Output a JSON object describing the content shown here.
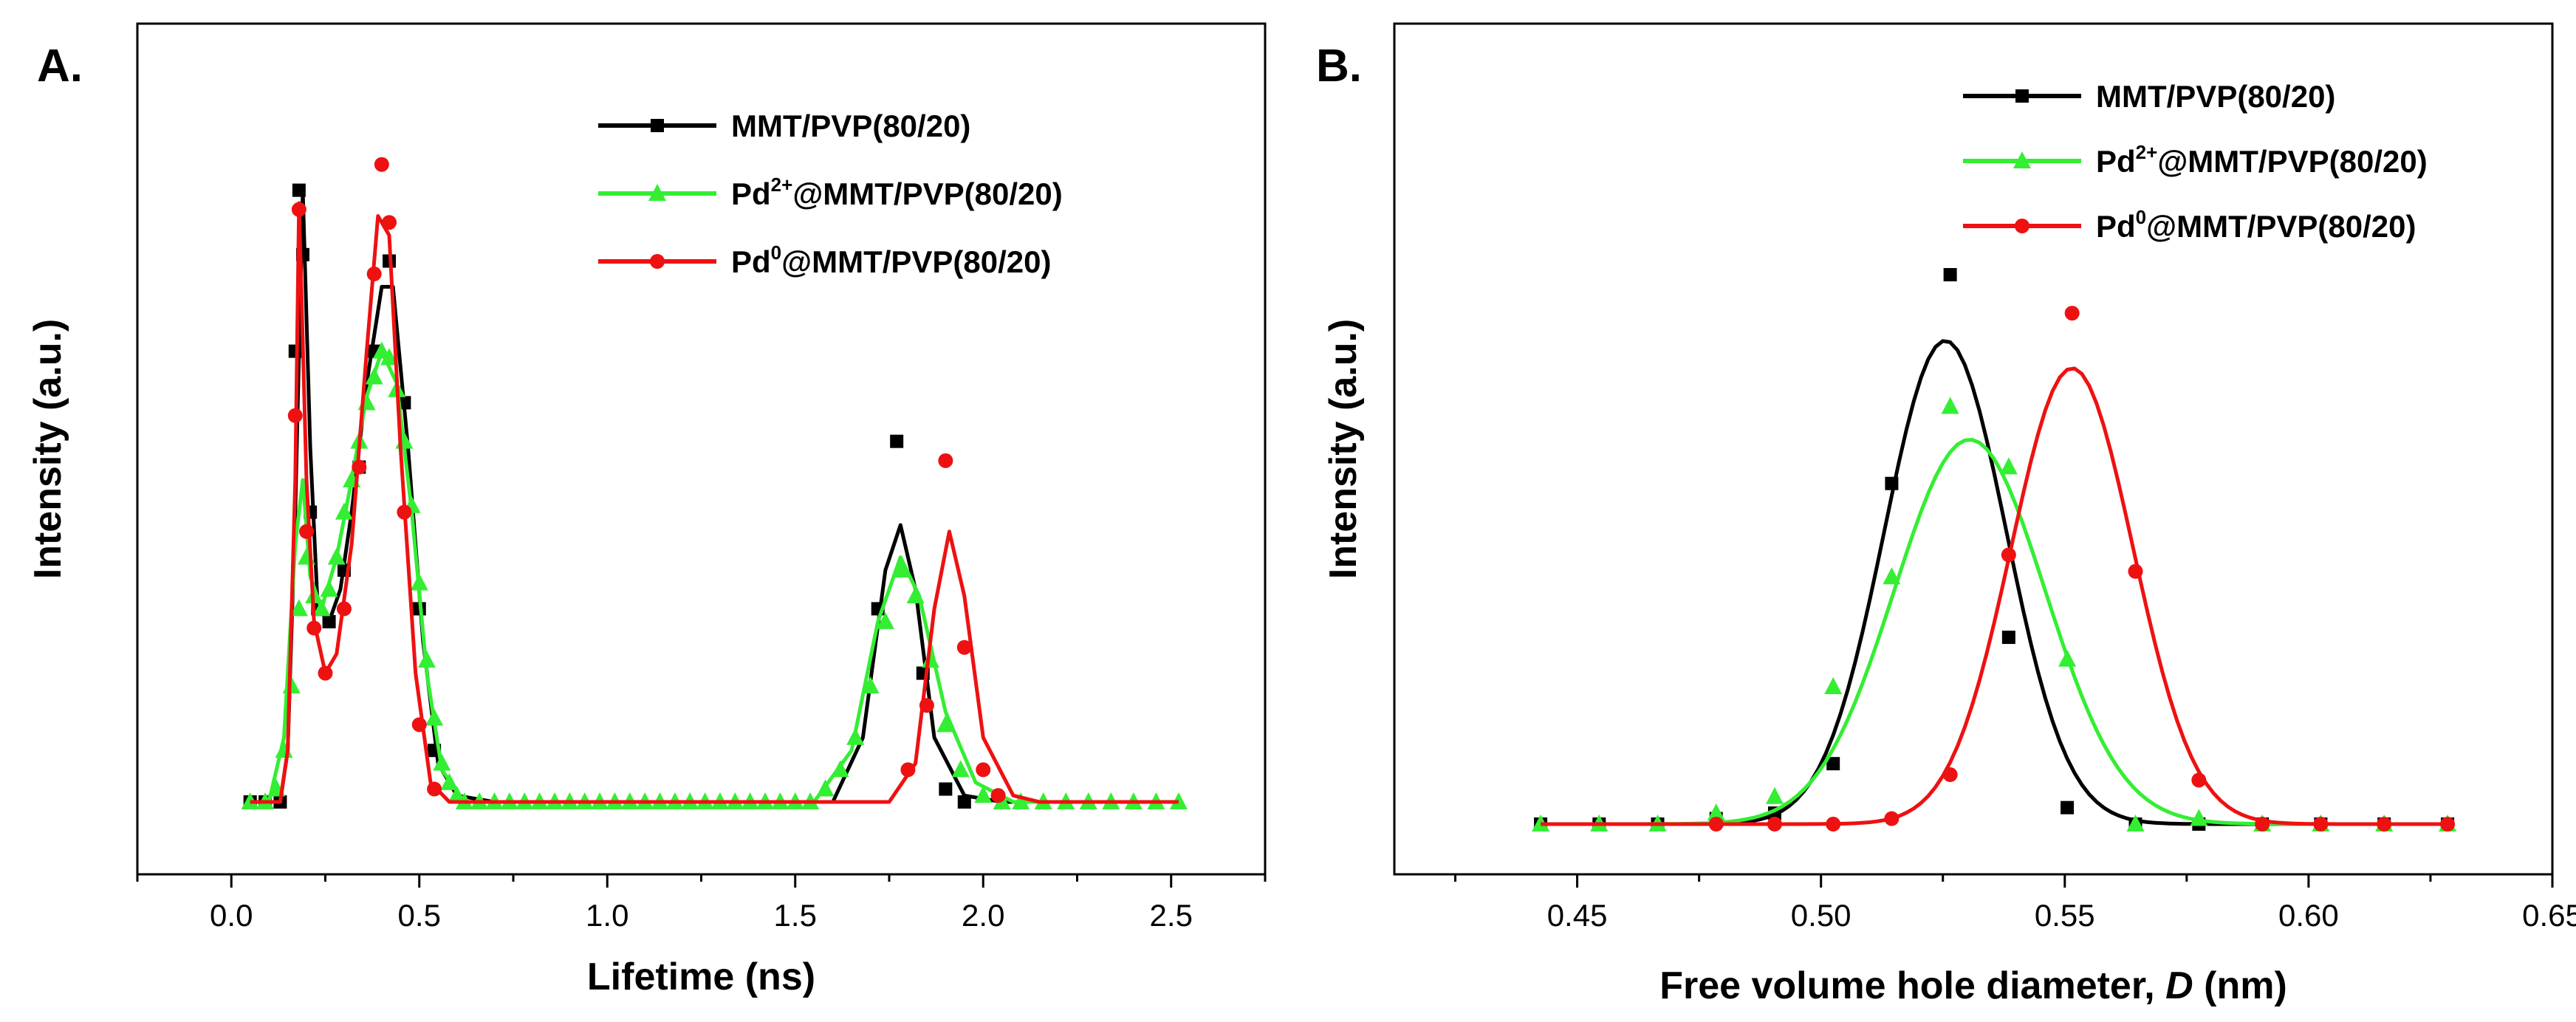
{
  "chart_data": [
    {
      "type": "line",
      "panel_label": "A.",
      "xlabel": "Lifetime (ns)",
      "ylabel": "Intensity (a.u.)",
      "xlim": [
        -0.25,
        2.75
      ],
      "xticks": [
        "0.0",
        "0.5",
        "1.0",
        "1.5",
        "2.0",
        "2.5"
      ],
      "y_ticks_shown": false,
      "legend_placement": "top-right",
      "series": [
        {
          "name": "MMT/PVP(80/20)",
          "name_sup": "",
          "name_rest": "",
          "color": "#000000",
          "marker": "square",
          "curve": [
            [
              0.05,
              0.0
            ],
            [
              0.13,
              0.0
            ],
            [
              0.15,
              0.08
            ],
            [
              0.17,
              0.45
            ],
            [
              0.19,
              0.95
            ],
            [
              0.21,
              0.55
            ],
            [
              0.23,
              0.3
            ],
            [
              0.26,
              0.28
            ],
            [
              0.29,
              0.33
            ],
            [
              0.32,
              0.45
            ],
            [
              0.36,
              0.65
            ],
            [
              0.4,
              0.8
            ],
            [
              0.43,
              0.8
            ],
            [
              0.47,
              0.55
            ],
            [
              0.51,
              0.25
            ],
            [
              0.55,
              0.06
            ],
            [
              0.6,
              0.01
            ],
            [
              0.7,
              0.0
            ],
            [
              1.6,
              0.0
            ],
            [
              1.68,
              0.1
            ],
            [
              1.74,
              0.36
            ],
            [
              1.78,
              0.43
            ],
            [
              1.82,
              0.33
            ],
            [
              1.87,
              0.1
            ],
            [
              1.95,
              0.01
            ],
            [
              2.05,
              0.0
            ],
            [
              2.52,
              0.0
            ]
          ],
          "points": [
            [
              0.05,
              0.0
            ],
            [
              0.09,
              0.0
            ],
            [
              0.13,
              0.0
            ],
            [
              0.17,
              0.7
            ],
            [
              0.18,
              0.95
            ],
            [
              0.19,
              0.85
            ],
            [
              0.21,
              0.45
            ],
            [
              0.23,
              0.3
            ],
            [
              0.26,
              0.28
            ],
            [
              0.3,
              0.36
            ],
            [
              0.34,
              0.52
            ],
            [
              0.38,
              0.7
            ],
            [
              0.42,
              0.84
            ],
            [
              0.46,
              0.62
            ],
            [
              0.5,
              0.3
            ],
            [
              0.54,
              0.08
            ],
            [
              1.72,
              0.3
            ],
            [
              1.77,
              0.56
            ],
            [
              1.84,
              0.2
            ],
            [
              1.9,
              0.02
            ],
            [
              1.95,
              0.0
            ]
          ]
        },
        {
          "name": "Pd",
          "name_sup": "2+",
          "name_rest": "@MMT/PVP(80/20)",
          "color": "#33ee33",
          "marker": "triangle",
          "curve": [
            [
              0.05,
              0.0
            ],
            [
              0.1,
              0.0
            ],
            [
              0.14,
              0.1
            ],
            [
              0.17,
              0.4
            ],
            [
              0.19,
              0.5
            ],
            [
              0.21,
              0.35
            ],
            [
              0.24,
              0.3
            ],
            [
              0.28,
              0.38
            ],
            [
              0.32,
              0.5
            ],
            [
              0.36,
              0.63
            ],
            [
              0.4,
              0.7
            ],
            [
              0.44,
              0.65
            ],
            [
              0.48,
              0.45
            ],
            [
              0.52,
              0.2
            ],
            [
              0.56,
              0.05
            ],
            [
              0.62,
              0.0
            ],
            [
              1.55,
              0.0
            ],
            [
              1.65,
              0.08
            ],
            [
              1.72,
              0.28
            ],
            [
              1.78,
              0.38
            ],
            [
              1.83,
              0.32
            ],
            [
              1.9,
              0.14
            ],
            [
              1.98,
              0.03
            ],
            [
              2.08,
              0.0
            ],
            [
              2.52,
              0.0
            ]
          ],
          "points": [
            [
              0.05,
              0.0
            ],
            [
              0.09,
              0.0
            ],
            [
              0.12,
              0.02
            ],
            [
              0.14,
              0.08
            ],
            [
              0.16,
              0.18
            ],
            [
              0.18,
              0.3
            ],
            [
              0.2,
              0.38
            ],
            [
              0.22,
              0.32
            ],
            [
              0.24,
              0.3
            ],
            [
              0.26,
              0.33
            ],
            [
              0.28,
              0.38
            ],
            [
              0.3,
              0.45
            ],
            [
              0.32,
              0.5
            ],
            [
              0.34,
              0.56
            ],
            [
              0.36,
              0.62
            ],
            [
              0.38,
              0.66
            ],
            [
              0.4,
              0.7
            ],
            [
              0.42,
              0.69
            ],
            [
              0.44,
              0.64
            ],
            [
              0.46,
              0.56
            ],
            [
              0.48,
              0.46
            ],
            [
              0.5,
              0.34
            ],
            [
              0.52,
              0.22
            ],
            [
              0.54,
              0.13
            ],
            [
              0.56,
              0.06
            ],
            [
              0.58,
              0.03
            ],
            [
              0.6,
              0.01
            ],
            [
              0.62,
              0.0
            ],
            [
              0.66,
              0.0
            ],
            [
              0.7,
              0.0
            ],
            [
              0.74,
              0.0
            ],
            [
              0.78,
              0.0
            ],
            [
              0.82,
              0.0
            ],
            [
              0.86,
              0.0
            ],
            [
              0.9,
              0.0
            ],
            [
              0.94,
              0.0
            ],
            [
              0.98,
              0.0
            ],
            [
              1.02,
              0.0
            ],
            [
              1.06,
              0.0
            ],
            [
              1.1,
              0.0
            ],
            [
              1.14,
              0.0
            ],
            [
              1.18,
              0.0
            ],
            [
              1.22,
              0.0
            ],
            [
              1.26,
              0.0
            ],
            [
              1.3,
              0.0
            ],
            [
              1.34,
              0.0
            ],
            [
              1.38,
              0.0
            ],
            [
              1.42,
              0.0
            ],
            [
              1.46,
              0.0
            ],
            [
              1.5,
              0.0
            ],
            [
              1.54,
              0.0
            ],
            [
              1.58,
              0.02
            ],
            [
              1.62,
              0.05
            ],
            [
              1.66,
              0.1
            ],
            [
              1.7,
              0.18
            ],
            [
              1.74,
              0.28
            ],
            [
              1.78,
              0.36
            ],
            [
              1.82,
              0.32
            ],
            [
              1.86,
              0.22
            ],
            [
              1.9,
              0.12
            ],
            [
              1.94,
              0.05
            ],
            [
              2.0,
              0.01
            ],
            [
              2.05,
              0.0
            ],
            [
              2.1,
              0.0
            ],
            [
              2.16,
              0.0
            ],
            [
              2.22,
              0.0
            ],
            [
              2.28,
              0.0
            ],
            [
              2.34,
              0.0
            ],
            [
              2.4,
              0.0
            ],
            [
              2.46,
              0.0
            ],
            [
              2.52,
              0.0
            ]
          ]
        },
        {
          "name": "Pd",
          "name_sup": "0",
          "name_rest": "@MMT/PVP(80/20)",
          "color": "#ee1111",
          "marker": "circle",
          "curve": [
            [
              0.05,
              0.0
            ],
            [
              0.13,
              0.0
            ],
            [
              0.15,
              0.08
            ],
            [
              0.17,
              0.5
            ],
            [
              0.18,
              0.93
            ],
            [
              0.2,
              0.5
            ],
            [
              0.22,
              0.28
            ],
            [
              0.25,
              0.2
            ],
            [
              0.28,
              0.23
            ],
            [
              0.32,
              0.4
            ],
            [
              0.36,
              0.7
            ],
            [
              0.39,
              0.91
            ],
            [
              0.42,
              0.88
            ],
            [
              0.45,
              0.55
            ],
            [
              0.49,
              0.2
            ],
            [
              0.53,
              0.03
            ],
            [
              0.58,
              0.0
            ],
            [
              1.75,
              0.0
            ],
            [
              1.82,
              0.06
            ],
            [
              1.87,
              0.3
            ],
            [
              1.91,
              0.42
            ],
            [
              1.95,
              0.32
            ],
            [
              2.0,
              0.1
            ],
            [
              2.08,
              0.01
            ],
            [
              2.15,
              0.0
            ],
            [
              2.52,
              0.0
            ]
          ],
          "points": [
            [
              0.17,
              0.6
            ],
            [
              0.18,
              0.92
            ],
            [
              0.2,
              0.42
            ],
            [
              0.22,
              0.27
            ],
            [
              0.25,
              0.2
            ],
            [
              0.3,
              0.3
            ],
            [
              0.34,
              0.52
            ],
            [
              0.38,
              0.82
            ],
            [
              0.4,
              0.99
            ],
            [
              0.42,
              0.9
            ],
            [
              0.46,
              0.45
            ],
            [
              0.5,
              0.12
            ],
            [
              0.54,
              0.02
            ],
            [
              1.8,
              0.05
            ],
            [
              1.85,
              0.15
            ],
            [
              1.9,
              0.53
            ],
            [
              1.95,
              0.24
            ],
            [
              2.0,
              0.05
            ],
            [
              2.04,
              0.01
            ]
          ]
        }
      ]
    },
    {
      "type": "line",
      "panel_label": "B.",
      "xlabel": "Free volume hole diameter, ",
      "xlabel_italic": "D",
      "xlabel_tail": " (nm)",
      "ylabel": "Intensity (a.u.)",
      "xlim": [
        0.4125,
        0.65
      ],
      "xticks": [
        "0.45",
        "0.50",
        "0.55",
        "0.60",
        "0.65"
      ],
      "y_ticks_shown": false,
      "legend_placement": "top-right",
      "series": [
        {
          "name": "MMT/PVP(80/20)",
          "name_sup": "",
          "name_rest": "",
          "color": "#000000",
          "marker": "square",
          "gaussian": {
            "center": 0.5255,
            "sigma": 0.0125,
            "amplitude": 0.88
          },
          "points": [
            [
              0.4425,
              0.0
            ],
            [
              0.4545,
              0.0
            ],
            [
              0.4665,
              0.0
            ],
            [
              0.4785,
              0.01
            ],
            [
              0.4905,
              0.02
            ],
            [
              0.5025,
              0.11
            ],
            [
              0.5145,
              0.62
            ],
            [
              0.5265,
              1.0
            ],
            [
              0.5385,
              0.34
            ],
            [
              0.5505,
              0.03
            ],
            [
              0.5645,
              0.0
            ],
            [
              0.5775,
              0.0
            ],
            [
              0.5905,
              0.0
            ],
            [
              0.6025,
              0.0
            ],
            [
              0.6155,
              0.0
            ],
            [
              0.6285,
              0.0
            ]
          ]
        },
        {
          "name": "Pd",
          "name_sup": "2+",
          "name_rest": "@MMT/PVP(80/20)",
          "color": "#33ee33",
          "marker": "triangle",
          "gaussian": {
            "center": 0.5305,
            "sigma": 0.0155,
            "amplitude": 0.7
          },
          "points": [
            [
              0.4425,
              0.0
            ],
            [
              0.4545,
              0.0
            ],
            [
              0.4665,
              0.0
            ],
            [
              0.4785,
              0.02
            ],
            [
              0.4905,
              0.05
            ],
            [
              0.5025,
              0.25
            ],
            [
              0.5145,
              0.45
            ],
            [
              0.5265,
              0.76
            ],
            [
              0.5385,
              0.65
            ],
            [
              0.5505,
              0.3
            ],
            [
              0.5645,
              0.0
            ],
            [
              0.5775,
              0.01
            ],
            [
              0.5905,
              0.0
            ],
            [
              0.6025,
              0.0
            ],
            [
              0.6155,
              0.0
            ],
            [
              0.6285,
              0.0
            ]
          ]
        },
        {
          "name": "Pd",
          "name_sup": "0",
          "name_rest": "@MMT/PVP(80/20)",
          "color": "#ee1111",
          "marker": "circle",
          "gaussian": {
            "center": 0.5515,
            "sigma": 0.0125,
            "amplitude": 0.83
          },
          "points": [
            [
              0.4785,
              0.0
            ],
            [
              0.4905,
              0.0
            ],
            [
              0.5025,
              0.0
            ],
            [
              0.5145,
              0.01
            ],
            [
              0.5265,
              0.09
            ],
            [
              0.5385,
              0.49
            ],
            [
              0.5515,
              0.93
            ],
            [
              0.5645,
              0.46
            ],
            [
              0.5775,
              0.08
            ],
            [
              0.5905,
              0.0
            ],
            [
              0.6025,
              0.0
            ],
            [
              0.6155,
              0.0
            ],
            [
              0.6285,
              0.0
            ]
          ]
        }
      ]
    }
  ]
}
